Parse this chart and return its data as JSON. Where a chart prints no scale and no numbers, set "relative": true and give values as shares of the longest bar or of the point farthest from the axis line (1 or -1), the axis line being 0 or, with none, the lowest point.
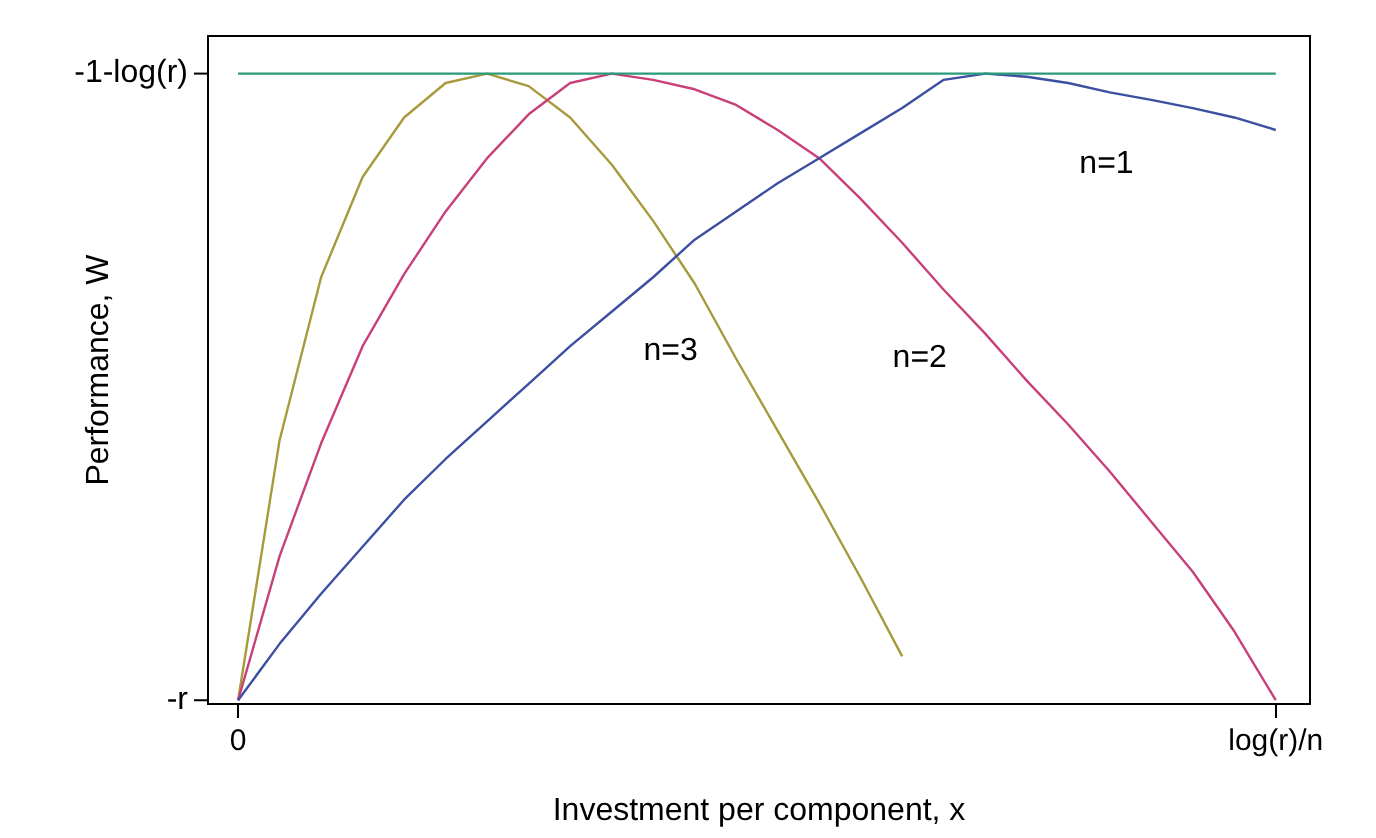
{
  "chart_data": {
    "type": "line",
    "relative": true,
    "xlabel": "Investment per component, x",
    "ylabel": "Performance, W",
    "categories": [
      "0",
      null,
      null,
      null,
      null,
      null,
      null,
      null,
      null,
      null,
      null,
      null,
      null,
      null,
      null,
      null,
      null,
      null,
      null,
      null,
      null,
      null,
      null,
      null,
      null,
      "log(r)/n"
    ],
    "grid": false,
    "legend": false,
    "marker": "none",
    "line_style": "solid",
    "series": [
      {
        "color": "#2a9a7a",
        "values": [
          1,
          1,
          1,
          1,
          1,
          1,
          1,
          1,
          1,
          1,
          1,
          1,
          1,
          1,
          1,
          1,
          1,
          1,
          1,
          1,
          1,
          1,
          1,
          1,
          1,
          1
        ]
      },
      {
        "name": "n=1",
        "color": "#3c4fa0",
        "values": [
          0,
          0.09,
          0.17,
          0.245,
          0.32,
          0.385,
          0.445,
          0.505,
          0.565,
          0.62,
          0.675,
          0.735,
          0.78,
          0.825,
          0.865,
          0.905,
          0.945,
          0.99,
          1,
          0.995,
          0.985,
          0.97,
          0.958,
          0.945,
          0.93,
          0.91
        ]
      },
      {
        "name": "n=2",
        "color": "#c8407a",
        "values": [
          0,
          0.23,
          0.41,
          0.565,
          0.68,
          0.78,
          0.865,
          0.935,
          0.985,
          1,
          0.99,
          0.975,
          0.95,
          0.91,
          0.865,
          0.8,
          0.73,
          0.655,
          0.585,
          0.51,
          0.44,
          0.365,
          0.285,
          0.205,
          0.11,
          0
        ]
      },
      {
        "name": "n=3",
        "color": "#a89a3c",
        "values": [
          0,
          0.415,
          0.675,
          0.835,
          0.93,
          0.985,
          1,
          0.98,
          0.93,
          0.855,
          0.765,
          0.665,
          0.545,
          0.43,
          0.315,
          0.195,
          0.07,
          null,
          null,
          null,
          null,
          null,
          null,
          null,
          null,
          null
        ]
      }
    ],
    "annotations": [
      "-1-log(r)",
      "-r"
    ]
  }
}
